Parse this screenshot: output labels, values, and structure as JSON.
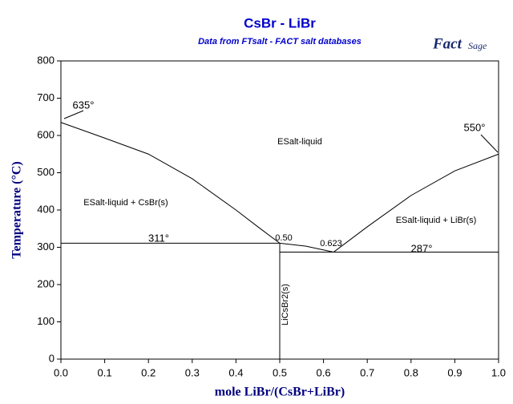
{
  "logo": {
    "main": "Fact",
    "sub": "Sage"
  },
  "chart_data": {
    "type": "line",
    "title": "CsBr - LiBr",
    "subtitle": "Data from FTsalt - FACT salt databases",
    "xlabel": "mole LiBr/(CsBr+LiBr)",
    "ylabel": "Temperature (°C)",
    "xlim": [
      0,
      1
    ],
    "ylim": [
      0,
      800
    ],
    "xticks": [
      {
        "value": 0,
        "label": "0.0"
      },
      0.1,
      0.2,
      0.3,
      0.4,
      0.5,
      0.6,
      0.7,
      0.8,
      0.9,
      {
        "value": 1,
        "label": "1.0"
      }
    ],
    "yticks": [
      0,
      100,
      200,
      300,
      400,
      500,
      600,
      700,
      800
    ],
    "series": [
      {
        "color": "#000000",
        "x": [
          0,
          0.1,
          0.2,
          0.3,
          0.4,
          0.45,
          0.5
        ],
        "values": [
          635,
          593,
          550,
          484,
          400,
          355,
          311
        ]
      },
      {
        "color": "#000000",
        "x": [
          0.5,
          0.56,
          0.623
        ],
        "values": [
          311,
          303,
          287
        ]
      },
      {
        "color": "#000000",
        "x": [
          0.623,
          0.7,
          0.8,
          0.9,
          1
        ],
        "values": [
          287,
          355,
          439,
          505,
          550
        ]
      },
      {
        "color": "#000000",
        "x": [
          0,
          0.5
        ],
        "values": [
          311,
          311
        ]
      },
      {
        "color": "#000000",
        "x": [
          0.5,
          1
        ],
        "values": [
          287,
          287
        ]
      },
      {
        "color": "#000000",
        "x": [
          0.5,
          0.5
        ],
        "values": [
          0,
          311
        ]
      }
    ],
    "annotations": [
      "635°",
      "550°",
      "311°",
      "287°",
      "0.50",
      "0.623",
      "ESalt-liquid",
      "ESalt-liquid + CsBr(s)",
      "ESalt-liquid + LiBr(s)",
      "LiCsBr2(s)"
    ]
  }
}
